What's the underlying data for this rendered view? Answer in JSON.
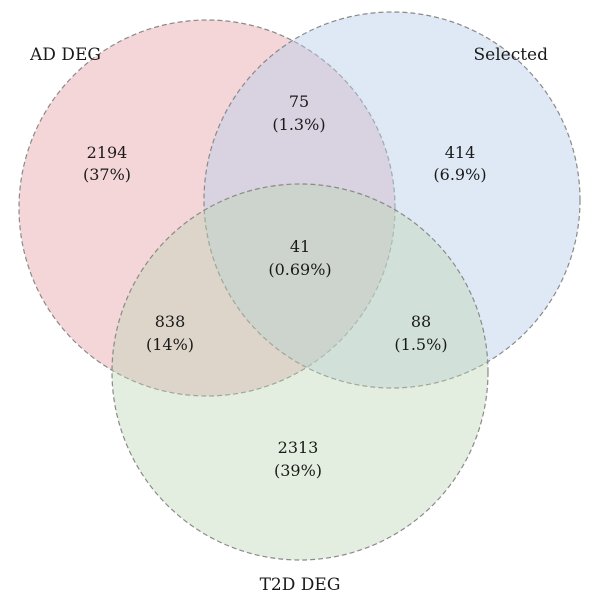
{
  "sets": [
    {
      "id": "ad",
      "label": "AD DEG",
      "color": "#e7a3ab"
    },
    {
      "id": "sel",
      "label": "Selected",
      "color": "#b7cfe8"
    },
    {
      "id": "t2d",
      "label": "T2D DEG",
      "color": "#bcd4b2"
    }
  ],
  "regions": {
    "ad_only": {
      "count": "2194",
      "percent": "(37%)"
    },
    "ad_sel": {
      "count": "75",
      "percent": "(1.3%)"
    },
    "sel_only": {
      "count": "414",
      "percent": "(6.9%)"
    },
    "all": {
      "count": "41",
      "percent": "(0.69%)"
    },
    "ad_t2d": {
      "count": "838",
      "percent": "(14%)"
    },
    "sel_t2d": {
      "count": "88",
      "percent": "(1.5%)"
    },
    "t2d_only": {
      "count": "2313",
      "percent": "(39%)"
    }
  }
}
